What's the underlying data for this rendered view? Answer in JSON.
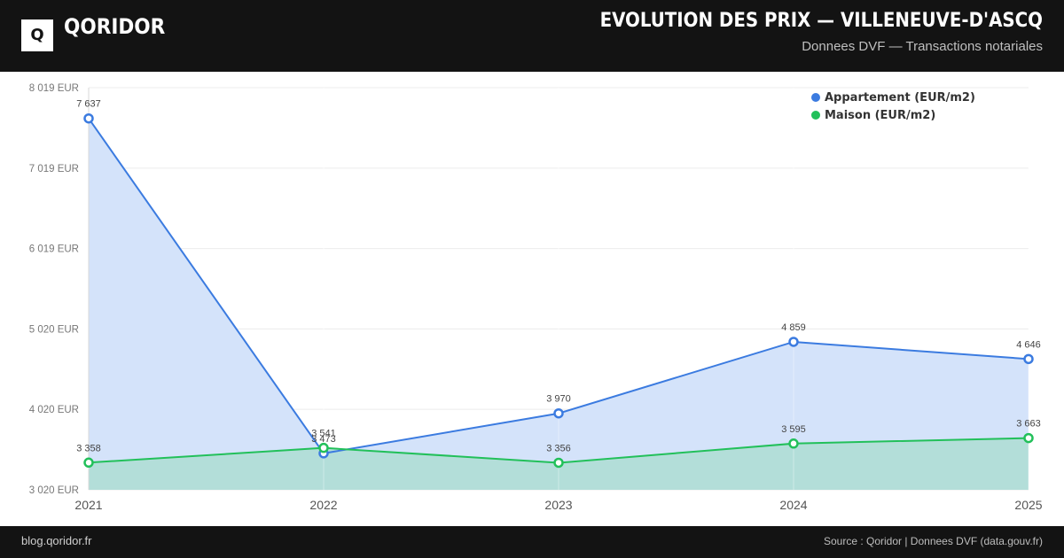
{
  "header": {
    "logo_letter": "Q",
    "brand": "QORIDOR",
    "title": "EVOLUTION DES PRIX — VILLENEUVE-D'ASCQ",
    "subtitle": "Donnees DVF — Transactions notariales"
  },
  "footer": {
    "left": "blog.qoridor.fr",
    "right": "Source : Qoridor | Donnees DVF (data.gouv.fr)"
  },
  "colors": {
    "header_bg": "#131313",
    "appartement": "#3b7be0",
    "appartement_fill": "#d4e3fa",
    "maison": "#22c05a",
    "maison_fill": "#b3ded9",
    "grid": "#ececec"
  },
  "chart_data": {
    "type": "area",
    "categories": [
      "2021",
      "2022",
      "2023",
      "2024",
      "2025"
    ],
    "ylim": [
      3020,
      8019
    ],
    "yticks": [
      3020,
      4020,
      5020,
      6019,
      7019,
      8019
    ],
    "ytick_labels": [
      "3 020 EUR",
      "4 020 EUR",
      "5 020 EUR",
      "6 019 EUR",
      "7 019 EUR",
      "8 019 EUR"
    ],
    "legend_position": "top-right",
    "grid": true,
    "series": [
      {
        "name": "Appartement (EUR/m2)",
        "values": [
          7637,
          3473,
          3970,
          4859,
          4646
        ],
        "labels": [
          "7 637",
          "3 473",
          "3 970",
          "4 859",
          "4 646"
        ]
      },
      {
        "name": "Maison (EUR/m2)",
        "values": [
          3358,
          3541,
          3356,
          3595,
          3663
        ],
        "labels": [
          "3 358",
          "3 541",
          "3 356",
          "3 595",
          "3 663"
        ]
      }
    ]
  }
}
